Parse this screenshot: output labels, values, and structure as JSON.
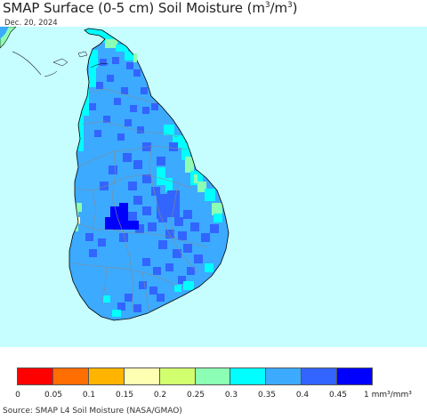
{
  "header": {
    "title_main": "SMAP Surface (0-5 cm) Soil Moisture (m",
    "title_sup1": "3",
    "title_mid": "/m",
    "title_sup2": "3",
    "title_end": ")",
    "date": "Dec. 20, 2024"
  },
  "map": {
    "ocean_color": "#c6fdff",
    "border_color": "#8a8a8a",
    "coast_color": "#000000"
  },
  "legend": {
    "colors": [
      "#ff0000",
      "#ff6e00",
      "#ffb400",
      "#ffffb4",
      "#d2ff6e",
      "#8cffb4",
      "#00ffff",
      "#3caaff",
      "#3264ff",
      "#0000ff"
    ],
    "ticks": [
      "0",
      "0.05",
      "0.1",
      "0.15",
      "0.2",
      "0.25",
      "0.3",
      "0.35",
      "0.4",
      "0.45"
    ],
    "unit": "1 mm³/mm³"
  },
  "source": "Source: SMAP L4 Soil Moisture (NASA/GMAO)"
}
